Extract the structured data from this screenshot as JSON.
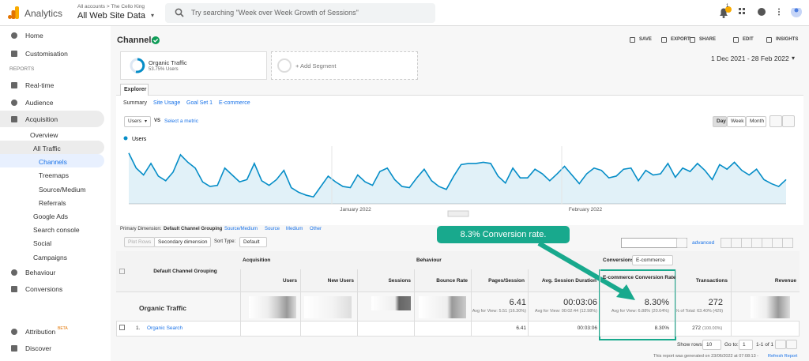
{
  "header": {
    "product": "Analytics",
    "breadcrumb": "All accounts > The Cello King",
    "property": "All Web Site Data",
    "search": "Try searching \"Week over Week Growth of Sessions\"",
    "badge": "1"
  },
  "sidebar": {
    "items": [
      "Home",
      "Customisation",
      "REPORTS",
      "Real-time",
      "Audience",
      "Acquisition",
      "Overview",
      "All Traffic",
      "Channels",
      "Treemaps",
      "Source/Medium",
      "Referrals",
      "Google Ads",
      "Search console",
      "Social",
      "Campaigns",
      "Behaviour",
      "Conversions",
      "Attribution",
      "Discover"
    ],
    "beta": "BETA"
  },
  "page": {
    "title": "Channels",
    "actions": [
      "SAVE",
      "EXPORT",
      "SHARE",
      "EDIT",
      "INSIGHTS"
    ],
    "segment": {
      "name": "Organic Traffic",
      "detail": "53.75% Users"
    },
    "add_segment": "+ Add Segment",
    "date_range": "1 Dec 2021 - 28 Feb 2022",
    "tab": "Explorer",
    "subtabs": [
      "Summary",
      "Site Usage",
      "Goal Set 1",
      "E-commerce"
    ],
    "metric": "Users",
    "vs": "VS",
    "select_metric": "Select a metric",
    "intervals": [
      "Day",
      "Week",
      "Month"
    ]
  },
  "chart_data": {
    "type": "line",
    "series": [
      {
        "name": "Users",
        "color": "#058dc7",
        "values": [
          88,
          62,
          50,
          70,
          48,
          40,
          55,
          85,
          72,
          62,
          38,
          30,
          32,
          62,
          50,
          38,
          42,
          70,
          40,
          32,
          42,
          58,
          28,
          20,
          15,
          12,
          30,
          48,
          38,
          30,
          28,
          50,
          38,
          32,
          56,
          62,
          42,
          30,
          28,
          45,
          60,
          40,
          30,
          25,
          48,
          68,
          70,
          70,
          72,
          70,
          48,
          36,
          62,
          45,
          45,
          60,
          52,
          40,
          52,
          65,
          50,
          35,
          52,
          62,
          58,
          45,
          48,
          60,
          62,
          40,
          58,
          50,
          52,
          70,
          46,
          62,
          56,
          70,
          58,
          42,
          68,
          60,
          72,
          58,
          50,
          60,
          42,
          35,
          30,
          42
        ]
      }
    ],
    "ylim": [
      0,
      100
    ],
    "x_labels": [
      "January 2022",
      "February 2022"
    ]
  },
  "controls": {
    "primary_dimension": "Primary Dimension:",
    "dimensions": [
      "Default Channel Grouping",
      "Source/Medium",
      "Source",
      "Medium",
      "Other"
    ],
    "plot_rows": "Plot Rows",
    "secondary": "Secondary dimension",
    "sort_type": "Sort Type:",
    "sort": "Default",
    "advanced": "advanced"
  },
  "annotation": "8.3% Conversion rate.",
  "table": {
    "groups": [
      "Acquisition",
      "Behaviour",
      "Conversions"
    ],
    "conversion_select": "E-commerce",
    "columns": [
      "Default Channel Grouping",
      "Users",
      "New Users",
      "Sessions",
      "Bounce Rate",
      "Pages/Session",
      "Avg. Session Duration",
      "E-commerce Conversion Rate",
      "Transactions",
      "Revenue"
    ],
    "totals": {
      "name": "Organic Traffic",
      "pages_session": "6.41",
      "pages_note": "Avg for View: 5.51 (16.30%)",
      "duration": "00:03:06",
      "duration_note": "Avg for View: 00:02:44 (12.98%)",
      "conversion_rate": "8.30%",
      "conversion_note": "Avg for View: 6.88% (20.64%)",
      "transactions": "272",
      "transactions_note": "% of Total: 63.40% (429)"
    },
    "rows": [
      {
        "index": "1.",
        "name": "Organic Search",
        "pages_session": "6.41",
        "duration": "00:03:06",
        "conversion_rate": "8.30%",
        "transactions": "272",
        "transactions_share": "(100.00%)"
      }
    ]
  },
  "footer": {
    "show_rows": "Show rows:",
    "rows": "10",
    "go_to": "Go to:",
    "page": "1",
    "range": "1-1 of 1",
    "generated": "This report was generated on 23/06/2022 at 07:08:13 -",
    "refresh": "Refresh Report"
  }
}
